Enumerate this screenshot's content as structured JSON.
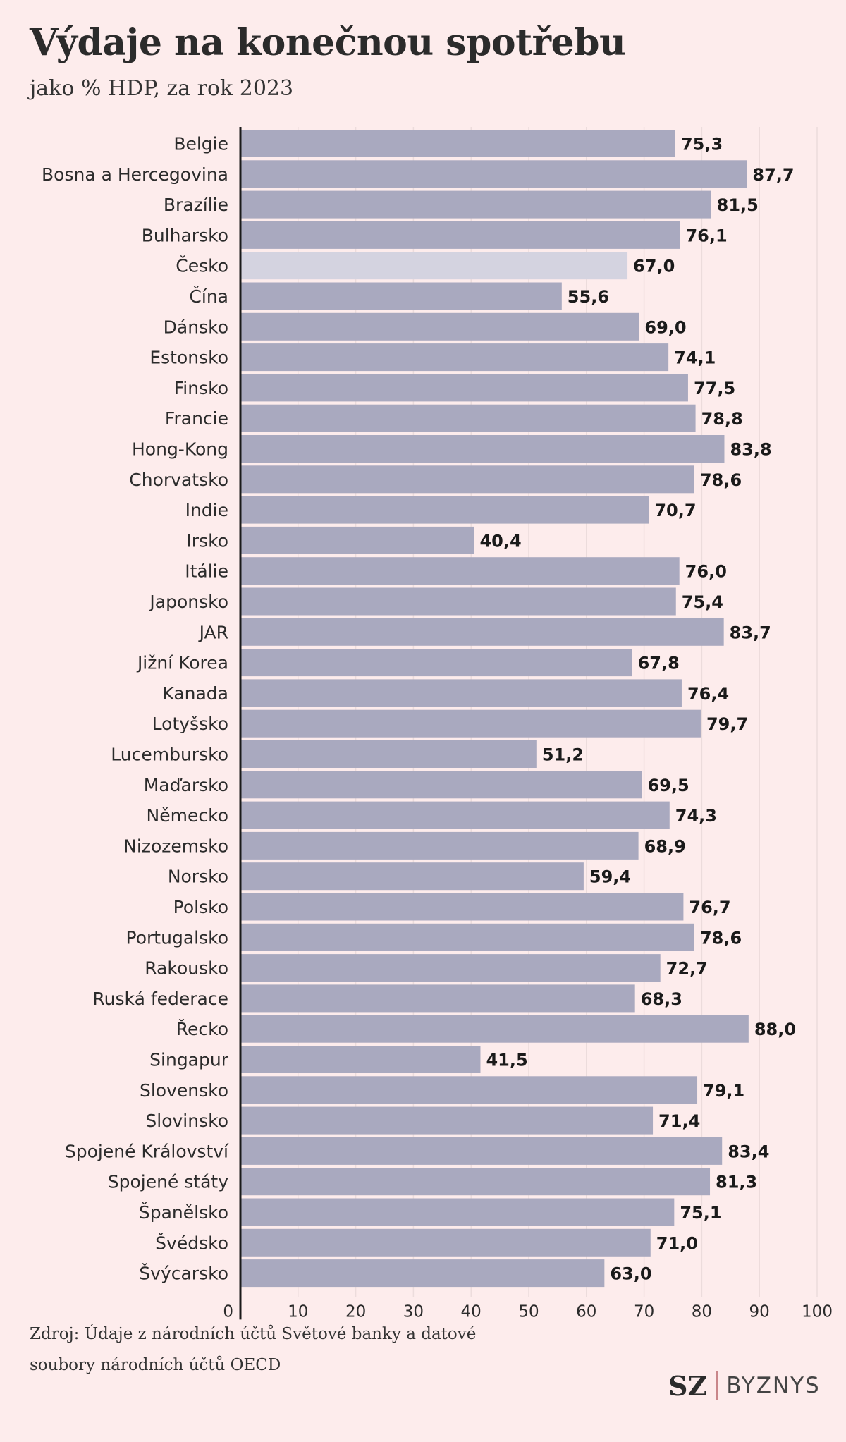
{
  "header": {
    "title": "Výdaje na konečnou spotřebu",
    "subtitle": "jako % HDP, za rok 2023"
  },
  "colors": {
    "bar": "#a9a9bf",
    "bar_highlight": "#d4d3e0",
    "background": "#fdecec"
  },
  "chart_data": {
    "type": "bar",
    "orientation": "horizontal",
    "title": "Výdaje na konečnou spotřebu",
    "subtitle": "jako % HDP, za rok 2023",
    "categories": [
      "Belgie",
      "Bosna a Hercegovina",
      "Brazílie",
      "Bulharsko",
      "Česko",
      "Čína",
      "Dánsko",
      "Estonsko",
      "Finsko",
      "Francie",
      "Hong-Kong",
      "Chorvatsko",
      "Indie",
      "Irsko",
      "Itálie",
      "Japonsko",
      "JAR",
      "Jižní Korea",
      "Kanada",
      "Lotyšsko",
      "Lucembursko",
      "Maďarsko",
      "Německo",
      "Nizozemsko",
      "Norsko",
      "Polsko",
      "Portugalsko",
      "Rakousko",
      "Ruská federace",
      "Řecko",
      "Singapur",
      "Slovensko",
      "Slovinsko",
      "Spojené Království",
      "Spojené státy",
      "Španělsko",
      "Švédsko",
      "Švýcarsko"
    ],
    "values": [
      75.3,
      87.7,
      81.5,
      76.1,
      67.0,
      55.6,
      69.0,
      74.1,
      77.5,
      78.8,
      83.8,
      78.6,
      70.7,
      40.4,
      76.0,
      75.4,
      83.7,
      67.8,
      76.4,
      79.7,
      51.2,
      69.5,
      74.3,
      68.9,
      59.4,
      76.7,
      78.6,
      72.7,
      68.3,
      88.0,
      41.5,
      79.1,
      71.4,
      83.4,
      81.3,
      75.1,
      71.0,
      63.0
    ],
    "value_labels": [
      "75,3",
      "87,7",
      "81,5",
      "76,1",
      "67,0",
      "55,6",
      "69,0",
      "74,1",
      "77,5",
      "78,8",
      "83,8",
      "78,6",
      "70,7",
      "40,4",
      "76,0",
      "75,4",
      "83,7",
      "67,8",
      "76,4",
      "79,7",
      "51,2",
      "69,5",
      "74,3",
      "68,9",
      "59,4",
      "76,7",
      "78,6",
      "72,7",
      "68,3",
      "88,0",
      "41,5",
      "79,1",
      "71,4",
      "83,4",
      "81,3",
      "75,1",
      "71,0",
      "63,0"
    ],
    "highlight": "Česko",
    "xlim": [
      0,
      100
    ],
    "xticks": [
      "0",
      "10",
      "20",
      "30",
      "40",
      "50",
      "60",
      "70",
      "80",
      "90",
      "100"
    ],
    "grid": true
  },
  "footer": {
    "source_line1": "Zdroj: Údaje z národních účtů Světové banky a datové",
    "source_line2": "soubory národních účtů OECD",
    "logo_sz": "SZ",
    "logo_byznys": "BYZNYS"
  }
}
